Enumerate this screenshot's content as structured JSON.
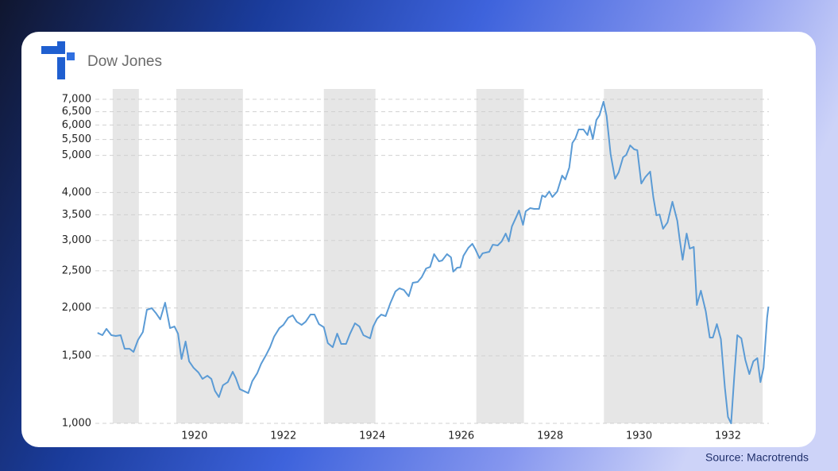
{
  "chart_data": {
    "type": "line",
    "title": "Dow Jones",
    "source": "Source: Macrotrends",
    "color": "#5b9bd5",
    "log_scale": true,
    "grid": true,
    "xlim": [
      1917.77,
      1932.92
    ],
    "xticks": [
      1920,
      1922,
      1924,
      1926,
      1928,
      1930,
      1932
    ],
    "ylim": [
      1000,
      7450
    ],
    "yticks": [
      {
        "value": 1000,
        "label": "1,000"
      },
      {
        "value": 1500,
        "label": "1,500"
      },
      {
        "value": 2000,
        "label": "2,000"
      },
      {
        "value": 2500,
        "label": "2,500"
      },
      {
        "value": 3000,
        "label": "3,000"
      },
      {
        "value": 3500,
        "label": "3,500"
      },
      {
        "value": 4000,
        "label": "4,000"
      },
      {
        "value": 5000,
        "label": "5,000"
      },
      {
        "value": 5500,
        "label": "5,500"
      },
      {
        "value": 6000,
        "label": "6,000"
      },
      {
        "value": 6500,
        "label": "6,500"
      },
      {
        "value": 7000,
        "label": "7,000"
      }
    ],
    "shaded_ranges": [
      [
        1918.16,
        1918.75
      ],
      [
        1919.59,
        1921.09
      ],
      [
        1922.91,
        1924.07
      ],
      [
        1926.34,
        1927.41
      ],
      [
        1929.21,
        1932.78
      ]
    ],
    "shade_color": "#e6e6e6",
    "x": [
      1917.82,
      1917.93,
      1918.02,
      1918.13,
      1918.23,
      1918.34,
      1918.43,
      1918.54,
      1918.63,
      1918.73,
      1918.84,
      1918.93,
      1919.04,
      1919.13,
      1919.23,
      1919.34,
      1919.45,
      1919.55,
      1919.63,
      1919.71,
      1919.8,
      1919.88,
      1919.98,
      1920.09,
      1920.18,
      1920.29,
      1920.38,
      1920.46,
      1920.55,
      1920.64,
      1920.75,
      1920.86,
      1920.93,
      1921.02,
      1921.21,
      1921.3,
      1921.41,
      1921.5,
      1921.61,
      1921.7,
      1921.79,
      1921.91,
      1922.0,
      1922.11,
      1922.21,
      1922.3,
      1922.41,
      1922.5,
      1922.61,
      1922.7,
      1922.8,
      1922.91,
      1923.0,
      1923.11,
      1923.21,
      1923.3,
      1923.41,
      1923.5,
      1923.61,
      1923.71,
      1923.8,
      1923.95,
      1924.02,
      1924.11,
      1924.2,
      1924.3,
      1924.41,
      1924.52,
      1924.61,
      1924.71,
      1924.82,
      1924.91,
      1925.02,
      1925.11,
      1925.21,
      1925.3,
      1925.39,
      1925.5,
      1925.57,
      1925.68,
      1925.77,
      1925.82,
      1925.91,
      1925.98,
      1926.05,
      1926.16,
      1926.25,
      1926.32,
      1926.41,
      1926.48,
      1926.63,
      1926.71,
      1926.82,
      1926.91,
      1927.0,
      1927.07,
      1927.14,
      1927.23,
      1927.3,
      1927.39,
      1927.45,
      1927.55,
      1927.64,
      1927.75,
      1927.82,
      1927.89,
      1927.98,
      1928.05,
      1928.16,
      1928.27,
      1928.34,
      1928.43,
      1928.5,
      1928.57,
      1928.64,
      1928.75,
      1928.84,
      1928.89,
      1928.96,
      1929.04,
      1929.11,
      1929.2,
      1929.27,
      1929.36,
      1929.46,
      1929.54,
      1929.64,
      1929.71,
      1929.8,
      1929.89,
      1929.96,
      1930.05,
      1930.14,
      1930.25,
      1930.32,
      1930.39,
      1930.46,
      1930.54,
      1930.64,
      1930.75,
      1930.86,
      1930.91,
      1930.98,
      1931.07,
      1931.14,
      1931.23,
      1931.3,
      1931.39,
      1931.5,
      1931.59,
      1931.66,
      1931.75,
      1931.84,
      1931.93,
      1932.0,
      1932.07,
      1932.14,
      1932.21,
      1932.3,
      1932.39,
      1932.48,
      1932.57,
      1932.66,
      1932.73,
      1932.8,
      1932.88,
      1932.91
    ],
    "values": [
      1722,
      1698,
      1764,
      1698,
      1690,
      1698,
      1565,
      1565,
      1536,
      1650,
      1731,
      1978,
      1997,
      1941,
      1867,
      2064,
      1772,
      1789,
      1714,
      1472,
      1635,
      1451,
      1396,
      1357,
      1306,
      1331,
      1306,
      1216,
      1171,
      1257,
      1281,
      1363,
      1313,
      1228,
      1199,
      1288,
      1350,
      1430,
      1507,
      1580,
      1682,
      1772,
      1806,
      1886,
      1913,
      1841,
      1806,
      1841,
      1922,
      1922,
      1815,
      1781,
      1619,
      1580,
      1714,
      1611,
      1611,
      1714,
      1824,
      1789,
      1698,
      1666,
      1789,
      1876,
      1922,
      1904,
      2064,
      2208,
      2250,
      2228,
      2145,
      2326,
      2337,
      2405,
      2535,
      2559,
      2763,
      2646,
      2659,
      2763,
      2710,
      2487,
      2547,
      2552,
      2735,
      2870,
      2939,
      2842,
      2697,
      2776,
      2802,
      2924,
      2911,
      2982,
      3126,
      2982,
      3263,
      3439,
      3591,
      3294,
      3573,
      3642,
      3625,
      3625,
      3930,
      3893,
      4025,
      3893,
      4025,
      4429,
      4325,
      4645,
      5386,
      5542,
      5840,
      5840,
      5648,
      5953,
      5516,
      6184,
      6363,
      6902,
      6333,
      5038,
      4345,
      4512,
      4943,
      5012,
      5309,
      5184,
      5159,
      4222,
      4387,
      4535,
      3893,
      3488,
      3505,
      3217,
      3342,
      3784,
      3375,
      3039,
      2672,
      3126,
      2856,
      2884,
      2035,
      2218,
      1960,
      1674,
      1674,
      1815,
      1658,
      1239,
      1039,
      1000,
      1319,
      1698,
      1666,
      1464,
      1344,
      1451,
      1479,
      1281,
      1396,
      1886,
      2016
    ]
  }
}
